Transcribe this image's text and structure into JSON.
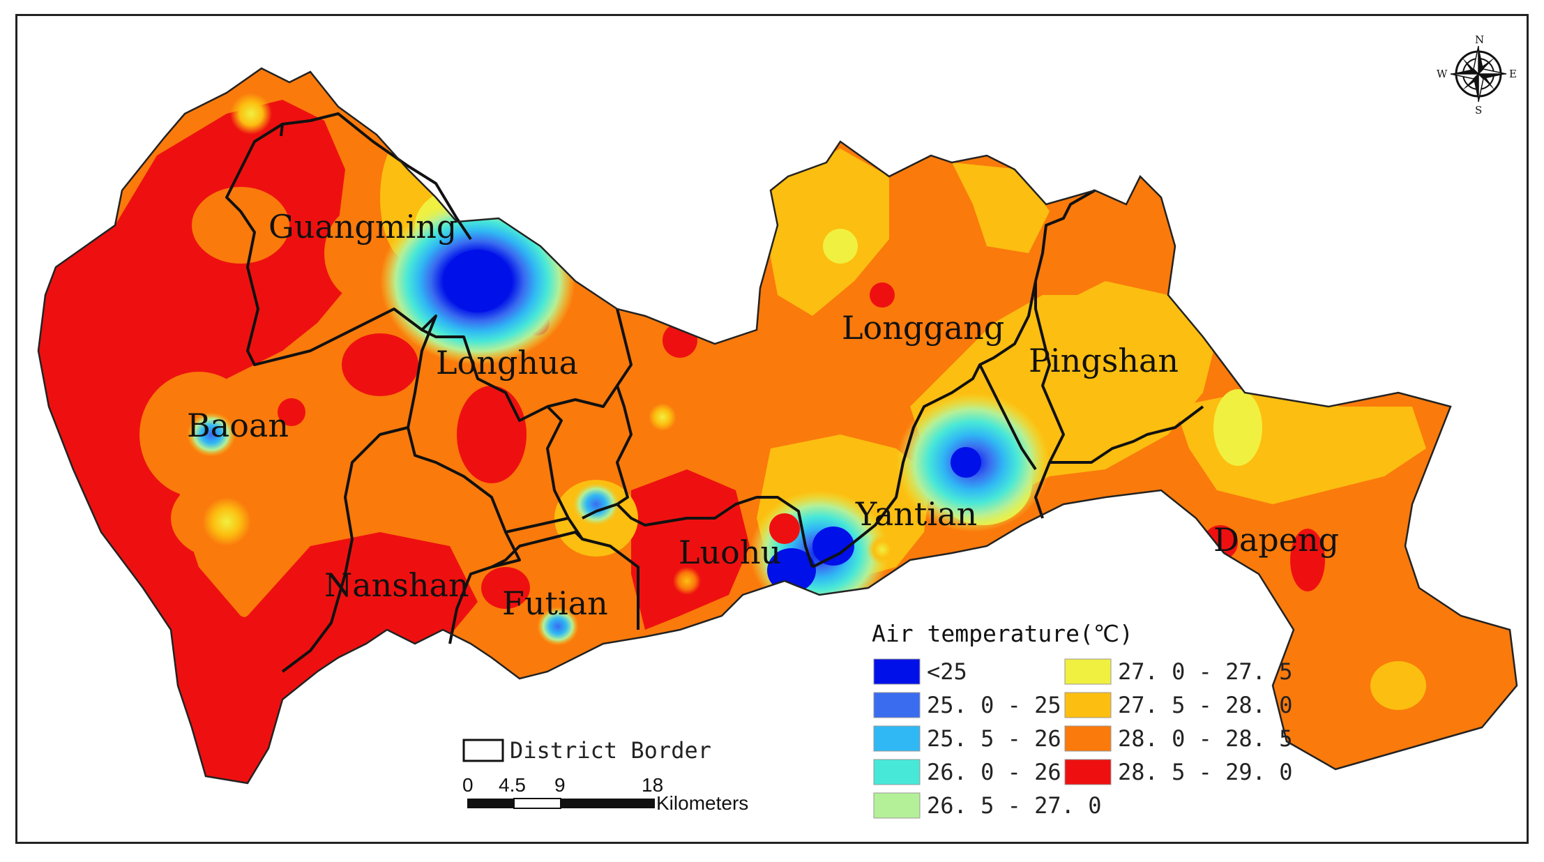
{
  "map": {
    "districts": [
      {
        "name": "Guangming"
      },
      {
        "name": "Longhua"
      },
      {
        "name": "Baoan"
      },
      {
        "name": "Nanshan"
      },
      {
        "name": "Futian"
      },
      {
        "name": "Luohu"
      },
      {
        "name": "Yantian"
      },
      {
        "name": "Longgang"
      },
      {
        "name": "Pingshan"
      },
      {
        "name": "Dapeng"
      }
    ],
    "compass": {
      "n": "N",
      "s": "S",
      "e": "E",
      "w": "W"
    },
    "legend": {
      "title": "Air temperature(℃)",
      "classes": [
        {
          "label": "<25",
          "color": "#0010e8"
        },
        {
          "label": "25. 0 - 25. 5",
          "color": "#3a6cf0"
        },
        {
          "label": "25. 5 - 26. 0",
          "color": "#30b8f4"
        },
        {
          "label": "26. 0 - 26. 5",
          "color": "#48e8d8"
        },
        {
          "label": "26. 5 - 27. 0",
          "color": "#b4f098"
        },
        {
          "label": "27. 0 - 27. 5",
          "color": "#f0f040"
        },
        {
          "label": "27. 5 - 28. 0",
          "color": "#fcbe10"
        },
        {
          "label": "28. 0 - 28. 5",
          "color": "#fa7a0c"
        },
        {
          "label": "28. 5 - 29. 0",
          "color": "#ee1010"
        }
      ],
      "border_label": "District Border"
    },
    "scale_bar": {
      "ticks": [
        "0",
        "4.5",
        "9",
        "18"
      ],
      "unit": "Kilometers"
    }
  }
}
